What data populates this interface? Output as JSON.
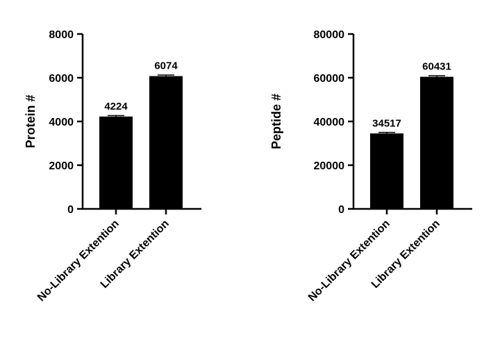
{
  "chart_data": [
    {
      "type": "bar",
      "ylabel": "Protein #",
      "categories": [
        "No-Library Extention",
        "Library Extention"
      ],
      "values": [
        4224,
        6074
      ],
      "data_labels": [
        "4224",
        "6074"
      ],
      "error_bars": true,
      "ylim": [
        0,
        8000
      ],
      "yticks": [
        0,
        2000,
        4000,
        6000,
        8000
      ],
      "ytick_labels": [
        "0",
        "2000",
        "4000",
        "6000",
        "8000"
      ],
      "bar_color": "#000000",
      "grid": false,
      "legend": "none"
    },
    {
      "type": "bar",
      "ylabel": "Peptide #",
      "categories": [
        "No-Library Extention",
        "Library Extention"
      ],
      "values": [
        34517,
        60431
      ],
      "data_labels": [
        "34517",
        "60431"
      ],
      "error_bars": true,
      "ylim": [
        0,
        80000
      ],
      "yticks": [
        0,
        20000,
        40000,
        60000,
        80000
      ],
      "ytick_labels": [
        "0",
        "20000",
        "40000",
        "60000",
        "80000"
      ],
      "bar_color": "#000000",
      "grid": false,
      "legend": "none"
    }
  ]
}
